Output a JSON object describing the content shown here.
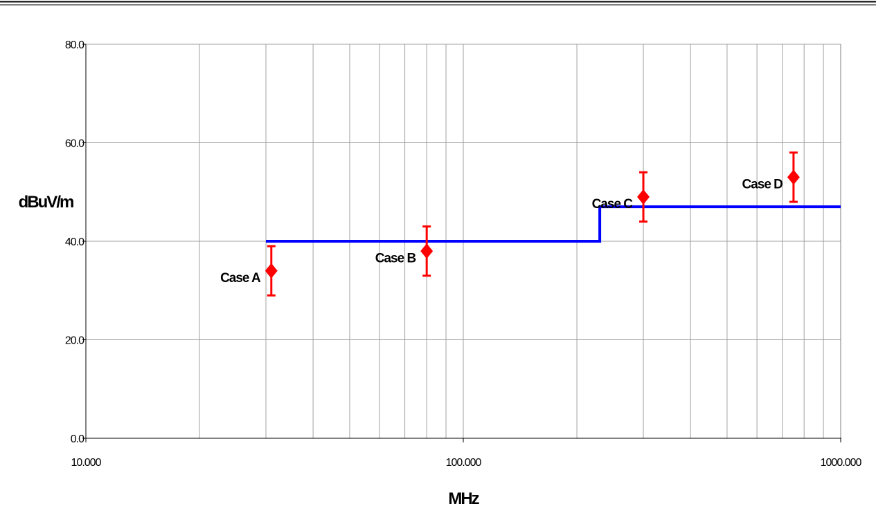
{
  "chart_data": {
    "type": "line",
    "xscale": "log",
    "xlim": [
      10,
      1000
    ],
    "ylim": [
      0,
      80
    ],
    "xlabel": "MHz",
    "ylabel": "dBuV/m",
    "x_ticks": [
      {
        "value": 10,
        "label": "10.000"
      },
      {
        "value": 100,
        "label": "100.000"
      },
      {
        "value": 1000,
        "label": "1000.000"
      }
    ],
    "y_ticks": [
      {
        "value": 0,
        "label": "0.0"
      },
      {
        "value": 20,
        "label": "20.0"
      },
      {
        "value": 40,
        "label": "40.0"
      },
      {
        "value": 60,
        "label": "60.0"
      },
      {
        "value": 80,
        "label": "80.0"
      }
    ],
    "grid": true,
    "legend": "none",
    "colors": {
      "limit_line": "#0000ff",
      "points": "#ff0000",
      "grid": "#a0a0a0",
      "axis": "#000000",
      "frame": "#808080"
    },
    "series": [
      {
        "type": "step",
        "points": [
          {
            "x": 30,
            "y": 40
          },
          {
            "x": 230,
            "y": 40
          },
          {
            "x": 230,
            "y": 47
          },
          {
            "x": 1000,
            "y": 47
          }
        ]
      },
      {
        "type": "scatter",
        "marker": "diamond",
        "points": [
          {
            "label": "Case A",
            "x": 31,
            "y": 34,
            "err_low": 29,
            "err_high": 39
          },
          {
            "label": "Case B",
            "x": 80,
            "y": 38,
            "err_low": 33,
            "err_high": 43
          },
          {
            "label": "Case C",
            "x": 300,
            "y": 49,
            "err_low": 44,
            "err_high": 54
          },
          {
            "label": "Case D",
            "x": 750,
            "y": 53,
            "err_low": 48,
            "err_high": 58
          }
        ]
      }
    ]
  }
}
